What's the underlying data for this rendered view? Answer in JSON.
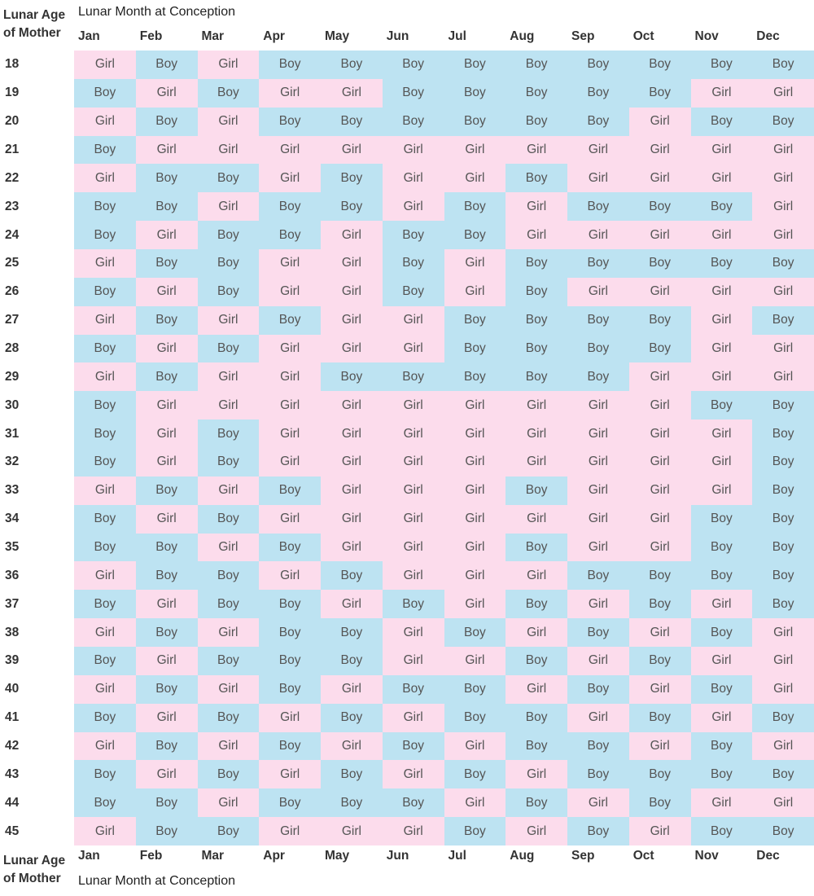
{
  "corner_label": "Lunar Age of Mother",
  "corner_line1": "Lunar Age",
  "corner_line2": "of Mother",
  "caption": "Lunar Month at Conception",
  "months": [
    "Jan",
    "Feb",
    "Mar",
    "Apr",
    "May",
    "Jun",
    "Jul",
    "Aug",
    "Sep",
    "Oct",
    "Nov",
    "Dec"
  ],
  "colors": {
    "Boy": "#bde3f2",
    "Girl": "#fcdcec"
  },
  "chart_data": {
    "type": "table",
    "title": "",
    "xlabel": "Lunar Month at Conception",
    "ylabel": "Lunar Age of Mother",
    "columns": [
      "Jan",
      "Feb",
      "Mar",
      "Apr",
      "May",
      "Jun",
      "Jul",
      "Aug",
      "Sep",
      "Oct",
      "Nov",
      "Dec"
    ],
    "rows": [
      {
        "age": "18",
        "values": [
          "Girl",
          "Boy",
          "Girl",
          "Boy",
          "Boy",
          "Boy",
          "Boy",
          "Boy",
          "Boy",
          "Boy",
          "Boy",
          "Boy"
        ]
      },
      {
        "age": "19",
        "values": [
          "Boy",
          "Girl",
          "Boy",
          "Girl",
          "Girl",
          "Boy",
          "Boy",
          "Boy",
          "Boy",
          "Boy",
          "Girl",
          "Girl"
        ]
      },
      {
        "age": "20",
        "values": [
          "Girl",
          "Boy",
          "Girl",
          "Boy",
          "Boy",
          "Boy",
          "Boy",
          "Boy",
          "Boy",
          "Girl",
          "Boy",
          "Boy"
        ]
      },
      {
        "age": "21",
        "values": [
          "Boy",
          "Girl",
          "Girl",
          "Girl",
          "Girl",
          "Girl",
          "Girl",
          "Girl",
          "Girl",
          "Girl",
          "Girl",
          "Girl"
        ]
      },
      {
        "age": "22",
        "values": [
          "Girl",
          "Boy",
          "Boy",
          "Girl",
          "Boy",
          "Girl",
          "Girl",
          "Boy",
          "Girl",
          "Girl",
          "Girl",
          "Girl"
        ]
      },
      {
        "age": "23",
        "values": [
          "Boy",
          "Boy",
          "Girl",
          "Boy",
          "Boy",
          "Girl",
          "Boy",
          "Girl",
          "Boy",
          "Boy",
          "Boy",
          "Girl"
        ]
      },
      {
        "age": "24",
        "values": [
          "Boy",
          "Girl",
          "Boy",
          "Boy",
          "Girl",
          "Boy",
          "Boy",
          "Girl",
          "Girl",
          "Girl",
          "Girl",
          "Girl"
        ]
      },
      {
        "age": "25",
        "values": [
          "Girl",
          "Boy",
          "Boy",
          "Girl",
          "Girl",
          "Boy",
          "Girl",
          "Boy",
          "Boy",
          "Boy",
          "Boy",
          "Boy"
        ]
      },
      {
        "age": "26",
        "values": [
          "Boy",
          "Girl",
          "Boy",
          "Girl",
          "Girl",
          "Boy",
          "Girl",
          "Boy",
          "Girl",
          "Girl",
          "Girl",
          "Girl"
        ]
      },
      {
        "age": "27",
        "values": [
          "Girl",
          "Boy",
          "Girl",
          "Boy",
          "Girl",
          "Girl",
          "Boy",
          "Boy",
          "Boy",
          "Boy",
          "Girl",
          "Boy"
        ]
      },
      {
        "age": "28",
        "values": [
          "Boy",
          "Girl",
          "Boy",
          "Girl",
          "Girl",
          "Girl",
          "Boy",
          "Boy",
          "Boy",
          "Boy",
          "Girl",
          "Girl"
        ]
      },
      {
        "age": "29",
        "values": [
          "Girl",
          "Boy",
          "Girl",
          "Girl",
          "Boy",
          "Boy",
          "Boy",
          "Boy",
          "Boy",
          "Girl",
          "Girl",
          "Girl"
        ]
      },
      {
        "age": "30",
        "values": [
          "Boy",
          "Girl",
          "Girl",
          "Girl",
          "Girl",
          "Girl",
          "Girl",
          "Girl",
          "Girl",
          "Girl",
          "Boy",
          "Boy"
        ]
      },
      {
        "age": "31",
        "values": [
          "Boy",
          "Girl",
          "Boy",
          "Girl",
          "Girl",
          "Girl",
          "Girl",
          "Girl",
          "Girl",
          "Girl",
          "Girl",
          "Boy"
        ]
      },
      {
        "age": "32",
        "values": [
          "Boy",
          "Girl",
          "Boy",
          "Girl",
          "Girl",
          "Girl",
          "Girl",
          "Girl",
          "Girl",
          "Girl",
          "Girl",
          "Boy"
        ]
      },
      {
        "age": "33",
        "values": [
          "Girl",
          "Boy",
          "Girl",
          "Boy",
          "Girl",
          "Girl",
          "Girl",
          "Boy",
          "Girl",
          "Girl",
          "Girl",
          "Boy"
        ]
      },
      {
        "age": "34",
        "values": [
          "Boy",
          "Girl",
          "Boy",
          "Girl",
          "Girl",
          "Girl",
          "Girl",
          "Girl",
          "Girl",
          "Girl",
          "Boy",
          "Boy"
        ]
      },
      {
        "age": "35",
        "values": [
          "Boy",
          "Boy",
          "Girl",
          "Boy",
          "Girl",
          "Girl",
          "Girl",
          "Boy",
          "Girl",
          "Girl",
          "Boy",
          "Boy"
        ]
      },
      {
        "age": "36",
        "values": [
          "Girl",
          "Boy",
          "Boy",
          "Girl",
          "Boy",
          "Girl",
          "Girl",
          "Girl",
          "Boy",
          "Boy",
          "Boy",
          "Boy"
        ]
      },
      {
        "age": "37",
        "values": [
          "Boy",
          "Girl",
          "Boy",
          "Boy",
          "Girl",
          "Boy",
          "Girl",
          "Boy",
          "Girl",
          "Boy",
          "Girl",
          "Boy"
        ]
      },
      {
        "age": "38",
        "values": [
          "Girl",
          "Boy",
          "Girl",
          "Boy",
          "Boy",
          "Girl",
          "Boy",
          "Girl",
          "Boy",
          "Girl",
          "Boy",
          "Girl"
        ]
      },
      {
        "age": "39",
        "values": [
          "Boy",
          "Girl",
          "Boy",
          "Boy",
          "Boy",
          "Girl",
          "Girl",
          "Boy",
          "Girl",
          "Boy",
          "Girl",
          "Girl"
        ]
      },
      {
        "age": "40",
        "values": [
          "Girl",
          "Boy",
          "Girl",
          "Boy",
          "Girl",
          "Boy",
          "Boy",
          "Girl",
          "Boy",
          "Girl",
          "Boy",
          "Girl"
        ]
      },
      {
        "age": "41",
        "values": [
          "Boy",
          "Girl",
          "Boy",
          "Girl",
          "Boy",
          "Girl",
          "Boy",
          "Boy",
          "Girl",
          "Boy",
          "Girl",
          "Boy"
        ]
      },
      {
        "age": "42",
        "values": [
          "Girl",
          "Boy",
          "Girl",
          "Boy",
          "Girl",
          "Boy",
          "Girl",
          "Boy",
          "Boy",
          "Girl",
          "Boy",
          "Girl"
        ]
      },
      {
        "age": "43",
        "values": [
          "Boy",
          "Girl",
          "Boy",
          "Girl",
          "Boy",
          "Girl",
          "Boy",
          "Girl",
          "Boy",
          "Boy",
          "Boy",
          "Boy"
        ]
      },
      {
        "age": "44",
        "values": [
          "Boy",
          "Boy",
          "Girl",
          "Boy",
          "Boy",
          "Boy",
          "Girl",
          "Boy",
          "Girl",
          "Boy",
          "Girl",
          "Girl"
        ]
      },
      {
        "age": "45",
        "values": [
          "Girl",
          "Boy",
          "Boy",
          "Girl",
          "Girl",
          "Girl",
          "Boy",
          "Girl",
          "Boy",
          "Girl",
          "Boy",
          "Boy"
        ]
      }
    ]
  }
}
